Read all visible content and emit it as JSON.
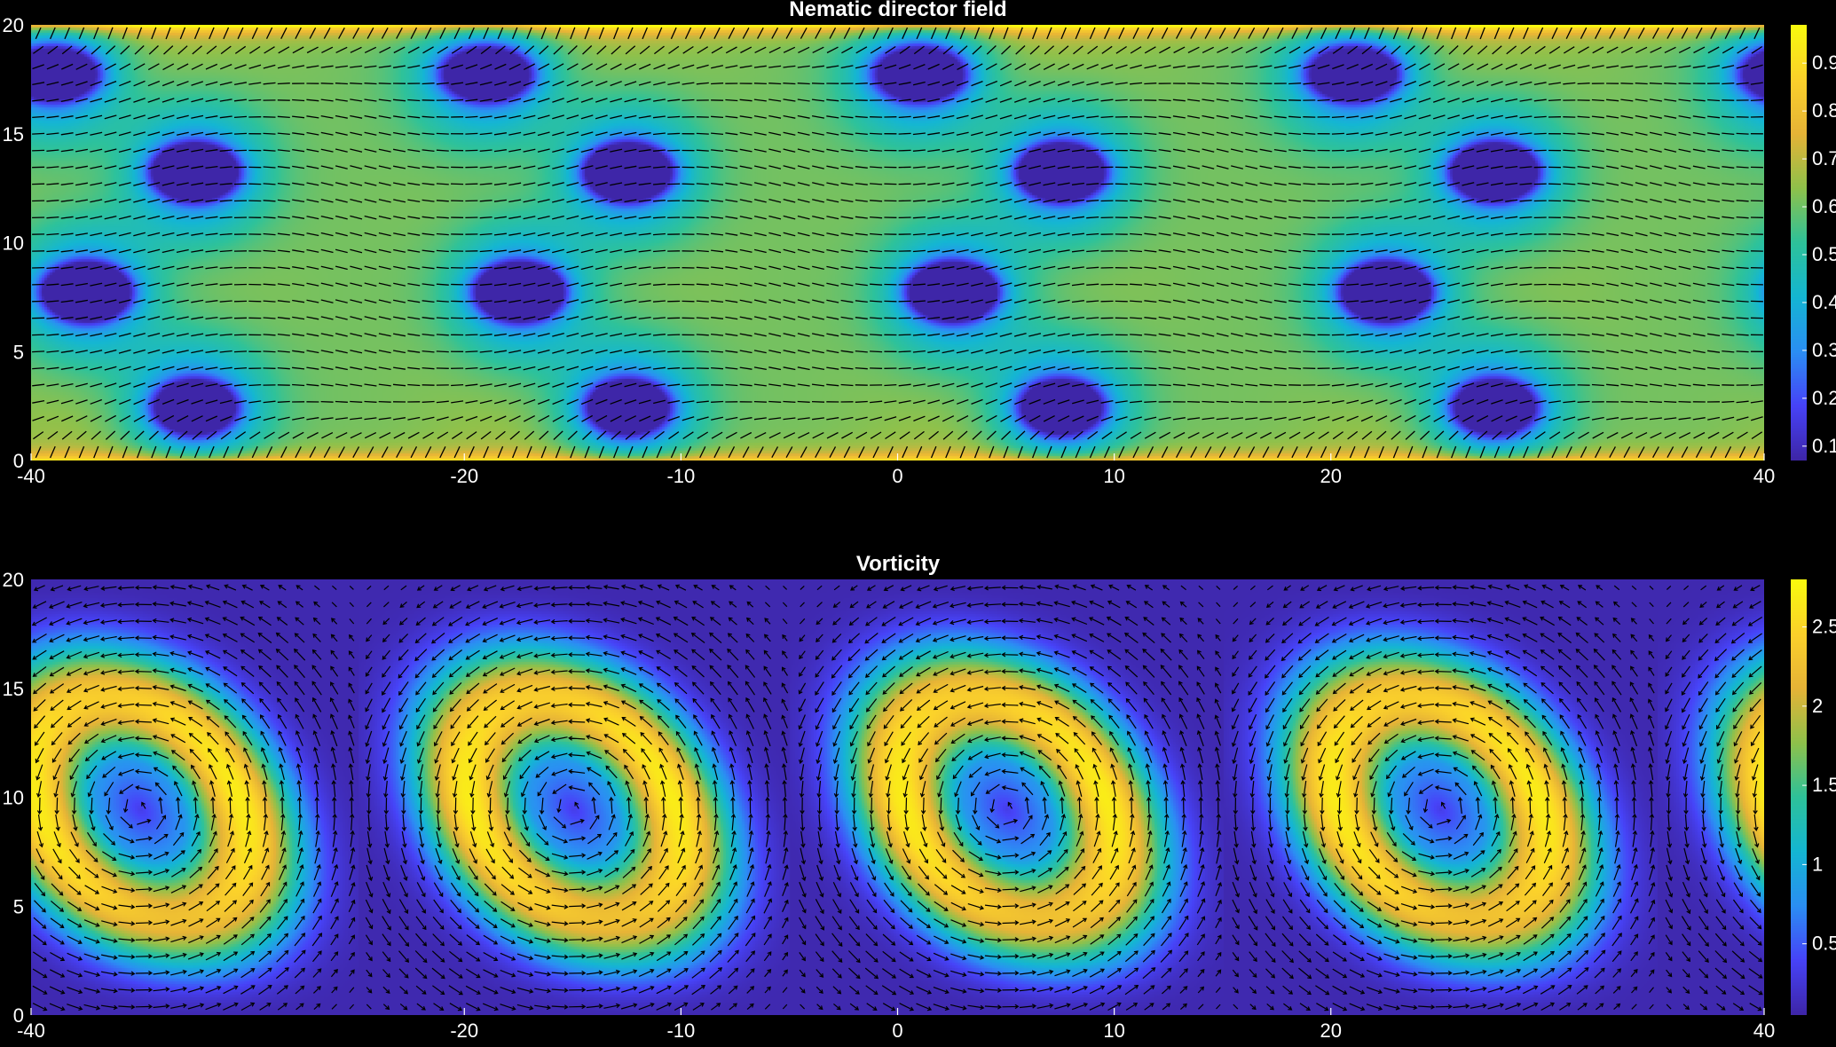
{
  "chart_data": [
    {
      "type": "heatmap",
      "title": "Nematic director field",
      "field": "nematic_order",
      "overlay": "director-lines",
      "xlim": [
        -40,
        40
      ],
      "ylim": [
        0,
        20
      ],
      "xticks": [
        -40,
        -20,
        -10,
        0,
        10,
        20,
        40
      ],
      "yticks": [
        0,
        5,
        10,
        15,
        20
      ],
      "clim": [
        0.07,
        0.98
      ],
      "cticks": [
        0.1,
        0.2,
        0.3,
        0.4,
        0.5,
        0.6,
        0.7,
        0.8,
        0.9
      ],
      "defects": [
        {
          "x": -38.5,
          "y": 17.8,
          "value": 0.3
        },
        {
          "x": -18.5,
          "y": 17.8,
          "value": 0.3
        },
        {
          "x": 0.5,
          "y": 17.8,
          "value": 0.3
        },
        {
          "x": 20.5,
          "y": 17.8,
          "value": 0.3
        },
        {
          "x": -32.5,
          "y": 13.3,
          "value": 0.2
        },
        {
          "x": -12.5,
          "y": 13.3,
          "value": 0.2
        },
        {
          "x": 7.5,
          "y": 13.3,
          "value": 0.2
        },
        {
          "x": 27.5,
          "y": 13.3,
          "value": 0.2
        },
        {
          "x": -37.5,
          "y": 7.8,
          "value": 0.15
        },
        {
          "x": -17.5,
          "y": 7.8,
          "value": 0.15
        },
        {
          "x": 2.5,
          "y": 7.8,
          "value": 0.15
        },
        {
          "x": 22.5,
          "y": 7.8,
          "value": 0.15
        },
        {
          "x": -32.5,
          "y": 2.5,
          "value": 0.3
        },
        {
          "x": -12.5,
          "y": 2.5,
          "value": 0.3
        },
        {
          "x": 7.5,
          "y": 2.5,
          "value": 0.3
        },
        {
          "x": 27.5,
          "y": 2.5,
          "value": 0.3
        }
      ]
    },
    {
      "type": "heatmap",
      "title": "Vorticity",
      "field": "vorticity_magnitude",
      "overlay": "velocity-arrows",
      "xlim": [
        -40,
        40
      ],
      "ylim": [
        0,
        20
      ],
      "xticks": [
        -40,
        -20,
        -10,
        0,
        10,
        20,
        40
      ],
      "yticks": [
        0,
        5,
        10,
        15,
        20
      ],
      "clim": [
        0.05,
        2.8
      ],
      "cticks": [
        0.5,
        1,
        1.5,
        2,
        2.5
      ],
      "vortex_cores": [
        {
          "x": -35,
          "y": 9.5
        },
        {
          "x": -15,
          "y": 9.5
        },
        {
          "x": 5,
          "y": 9.5
        },
        {
          "x": 25,
          "y": 9.5
        }
      ],
      "period_x": 20
    }
  ],
  "colormap": [
    "#3e26a8",
    "#4743f8",
    "#2b8ff3",
    "#14b6d3",
    "#2ec29a",
    "#8fc14b",
    "#e6b337",
    "#fbd12b",
    "#f9fb0e"
  ]
}
